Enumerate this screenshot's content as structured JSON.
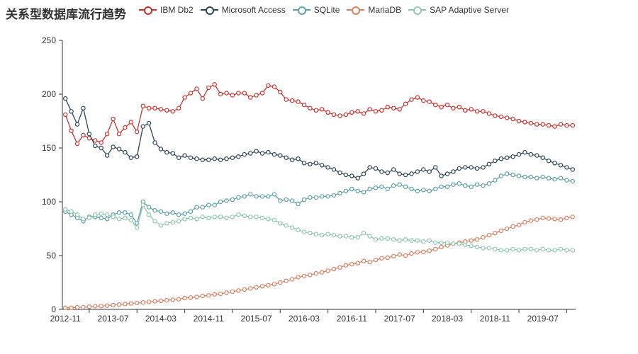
{
  "chart_data": {
    "type": "line",
    "title": "关系型数据库流行趋势",
    "legend_position": "top",
    "grid": false,
    "xlabel": "",
    "ylabel": "",
    "ylim": [
      0,
      250
    ],
    "y_ticks": [
      0,
      50,
      100,
      150,
      200,
      250
    ],
    "x_label_every": 8,
    "x_tick_labels_shown": [
      "2012-11",
      "2013-07",
      "2014-03",
      "2014-11",
      "2015-07",
      "2016-03",
      "2016-11",
      "2017-07",
      "2018-03",
      "2018-11",
      "2019-07"
    ],
    "axis_color": "#333333",
    "background_color": "#ffffff",
    "categories": [
      "2012-11",
      "2012-12",
      "2013-01",
      "2013-02",
      "2013-03",
      "2013-04",
      "2013-05",
      "2013-06",
      "2013-07",
      "2013-08",
      "2013-09",
      "2013-10",
      "2013-11",
      "2013-12",
      "2014-01",
      "2014-02",
      "2014-03",
      "2014-04",
      "2014-05",
      "2014-06",
      "2014-07",
      "2014-08",
      "2014-09",
      "2014-10",
      "2014-11",
      "2014-12",
      "2015-01",
      "2015-02",
      "2015-03",
      "2015-04",
      "2015-05",
      "2015-06",
      "2015-07",
      "2015-08",
      "2015-09",
      "2015-10",
      "2015-11",
      "2015-12",
      "2016-01",
      "2016-02",
      "2016-03",
      "2016-04",
      "2016-05",
      "2016-06",
      "2016-07",
      "2016-08",
      "2016-09",
      "2016-10",
      "2016-11",
      "2016-12",
      "2017-01",
      "2017-02",
      "2017-03",
      "2017-04",
      "2017-05",
      "2017-06",
      "2017-07",
      "2017-08",
      "2017-09",
      "2017-10",
      "2017-11",
      "2017-12",
      "2018-01",
      "2018-02",
      "2018-03",
      "2018-04",
      "2018-05",
      "2018-06",
      "2018-07",
      "2018-08",
      "2018-09",
      "2018-10",
      "2018-11",
      "2018-12",
      "2019-01",
      "2019-02",
      "2019-03",
      "2019-04",
      "2019-05",
      "2019-06",
      "2019-07",
      "2019-08",
      "2019-09",
      "2019-10",
      "2019-11",
      "2019-12"
    ],
    "series": [
      {
        "name": "IBM Db2",
        "color": "#c23531",
        "values": [
          181,
          166,
          154,
          162,
          159,
          157,
          155,
          163,
          177,
          163,
          169,
          174,
          165,
          189,
          187,
          187,
          186,
          185,
          184,
          187,
          197,
          201,
          205,
          196,
          206,
          209,
          200,
          201,
          199,
          201,
          201,
          197,
          199,
          201,
          208,
          207,
          202,
          195,
          194,
          193,
          190,
          187,
          185,
          186,
          183,
          181,
          180,
          181,
          183,
          184,
          182,
          186,
          184,
          185,
          188,
          187,
          186,
          191,
          195,
          197,
          194,
          193,
          190,
          188,
          190,
          187,
          188,
          185,
          186,
          184,
          184,
          182,
          180,
          179,
          178,
          177,
          175,
          174,
          173,
          172,
          172,
          171,
          170,
          172,
          171,
          171
        ]
      },
      {
        "name": "Microsoft Access",
        "color": "#2f4554",
        "values": [
          196,
          184,
          172,
          187,
          163,
          152,
          150,
          143,
          151,
          149,
          146,
          141,
          142,
          170,
          173,
          155,
          149,
          146,
          145,
          141,
          143,
          141,
          140,
          139,
          139,
          140,
          139,
          140,
          141,
          142,
          144,
          145,
          147,
          145,
          146,
          144,
          143,
          141,
          139,
          140,
          136,
          135,
          136,
          134,
          132,
          130,
          127,
          125,
          124,
          122,
          126,
          132,
          131,
          128,
          127,
          130,
          126,
          125,
          126,
          128,
          130,
          128,
          132,
          124,
          126,
          128,
          131,
          132,
          132,
          131,
          132,
          135,
          138,
          140,
          141,
          142,
          144,
          146,
          144,
          143,
          141,
          138,
          136,
          134,
          132,
          130
        ]
      },
      {
        "name": "SQLite",
        "color": "#61a0a8",
        "values": [
          91,
          88,
          85,
          82,
          86,
          86,
          85,
          84,
          88,
          90,
          90,
          88,
          80,
          100,
          95,
          92,
          91,
          89,
          90,
          88,
          89,
          91,
          95,
          95,
          97,
          97,
          100,
          101,
          102,
          104,
          105,
          107,
          105,
          105,
          105,
          107,
          101,
          102,
          101,
          98,
          102,
          104,
          104,
          105,
          105,
          106,
          108,
          110,
          112,
          110,
          109,
          112,
          113,
          114,
          112,
          115,
          116,
          114,
          112,
          110,
          111,
          110,
          112,
          114,
          114,
          116,
          117,
          115,
          114,
          116,
          115,
          117,
          120,
          124,
          126,
          125,
          124,
          123,
          123,
          122,
          123,
          122,
          121,
          122,
          120,
          119
        ]
      },
      {
        "name": "MariaDB",
        "color": "#d48265",
        "values": [
          1.5,
          1.5,
          2,
          2,
          2.5,
          3,
          3,
          3.5,
          4,
          4.5,
          5,
          5.5,
          6,
          6.5,
          7,
          7.5,
          8,
          8.5,
          9,
          9.5,
          10.5,
          11,
          11.5,
          12.5,
          13,
          14,
          14.5,
          15.5,
          16.5,
          17.5,
          18.5,
          19.5,
          20.5,
          21.5,
          22.5,
          23.5,
          25,
          26.5,
          28,
          30,
          31,
          32,
          33.5,
          34.5,
          36,
          37.5,
          39,
          41,
          42,
          43,
          45,
          44,
          46,
          47.5,
          48,
          49.5,
          51,
          50,
          52,
          53,
          53.5,
          54.5,
          56,
          58,
          59.5,
          61,
          62,
          63,
          64,
          65,
          67,
          69,
          71,
          73,
          75,
          77,
          78.5,
          81,
          82.5,
          83.5,
          85,
          84.5,
          84,
          83.5,
          85,
          86
        ]
      },
      {
        "name": "SAP Adaptive Server",
        "color": "#91c7ae",
        "values": [
          93,
          91,
          88,
          84,
          85,
          88,
          89,
          88,
          86,
          84,
          85,
          83,
          76,
          97,
          88,
          82,
          78,
          80,
          81,
          82,
          84,
          85,
          84,
          86,
          85,
          86,
          86,
          85,
          86,
          88,
          87,
          86,
          86,
          85,
          84,
          83,
          80,
          78,
          76,
          74,
          72,
          71,
          70,
          69,
          70,
          69,
          68,
          68,
          67,
          67,
          71,
          68,
          65,
          66,
          66,
          65,
          64,
          65,
          64,
          64,
          63,
          64,
          62,
          62,
          62,
          61,
          61,
          60,
          59,
          58,
          57,
          57,
          56,
          55,
          55,
          56,
          55,
          56,
          56,
          55,
          56,
          55,
          55,
          56,
          55,
          55
        ]
      }
    ]
  }
}
